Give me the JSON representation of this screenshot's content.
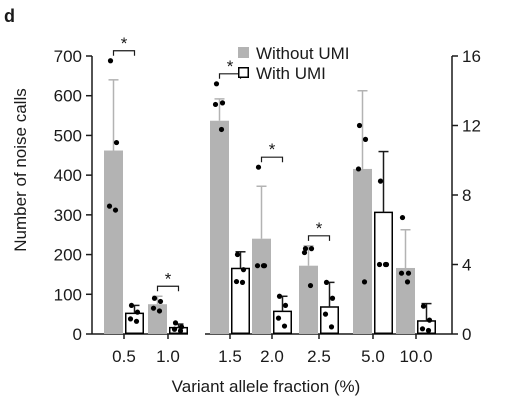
{
  "panel_label": "d",
  "chart_data": {
    "type": "bar",
    "xlabel": "Variant allele fraction (%)",
    "ylabel": "Number of noise calls",
    "categories": [
      "0.5",
      "1.0",
      "1.5",
      "2.0",
      "2.5",
      "5.0",
      "10.0"
    ],
    "axis_left": {
      "range": [
        0,
        700
      ],
      "ticks": [
        0,
        100,
        200,
        300,
        400,
        500,
        600,
        700
      ],
      "applies_to_categories": [
        "0.5",
        "1.0",
        "1.5",
        "2.0",
        "2.5"
      ]
    },
    "axis_right": {
      "range": [
        0,
        16
      ],
      "ticks": [
        0,
        4,
        8,
        12,
        16
      ],
      "applies_to_categories": [
        "5.0",
        "10.0"
      ]
    },
    "legend": {
      "position": "top-right"
    },
    "series": [
      {
        "name": "Without UMI",
        "color": "#b3b3b3",
        "style": "filled",
        "values": [
          462,
          75,
          537,
          240,
          172,
          9.5,
          3.8
        ],
        "error": [
          178,
          20,
          55,
          132,
          50,
          4.5,
          2.2
        ],
        "points": [
          [
            688,
            482,
            322,
            312
          ],
          [
            90,
            82,
            65,
            58
          ],
          [
            630,
            582,
            578,
            515
          ],
          [
            420,
            172,
            172,
            172
          ],
          [
            215,
            215,
            205,
            122
          ],
          [
            12.0,
            11.2,
            9.5,
            3.0
          ],
          [
            6.7,
            3.5,
            3.5,
            3.0
          ]
        ]
      },
      {
        "name": "With UMI",
        "color": "#000000",
        "style": "outline",
        "values": [
          52,
          16,
          165,
          57,
          68,
          7.0,
          0.75
        ],
        "error": [
          20,
          9,
          42,
          38,
          62,
          3.5,
          1.0
        ],
        "points": [
          [
            72,
            55,
            38,
            32
          ],
          [
            28,
            18,
            12,
            8
          ],
          [
            200,
            162,
            132,
            130
          ],
          [
            95,
            72,
            40,
            20
          ],
          [
            130,
            90,
            50,
            18
          ],
          [
            8.8,
            4.0,
            4.0,
            4.0
          ],
          [
            1.6,
            0.8,
            0.3,
            0.2
          ]
        ]
      }
    ],
    "significance": [
      {
        "category": "0.5",
        "label": "*"
      },
      {
        "category": "1.0",
        "label": "*"
      },
      {
        "category": "1.5",
        "label": "*"
      },
      {
        "category": "2.0",
        "label": "*"
      },
      {
        "category": "2.5",
        "label": "*"
      }
    ]
  }
}
